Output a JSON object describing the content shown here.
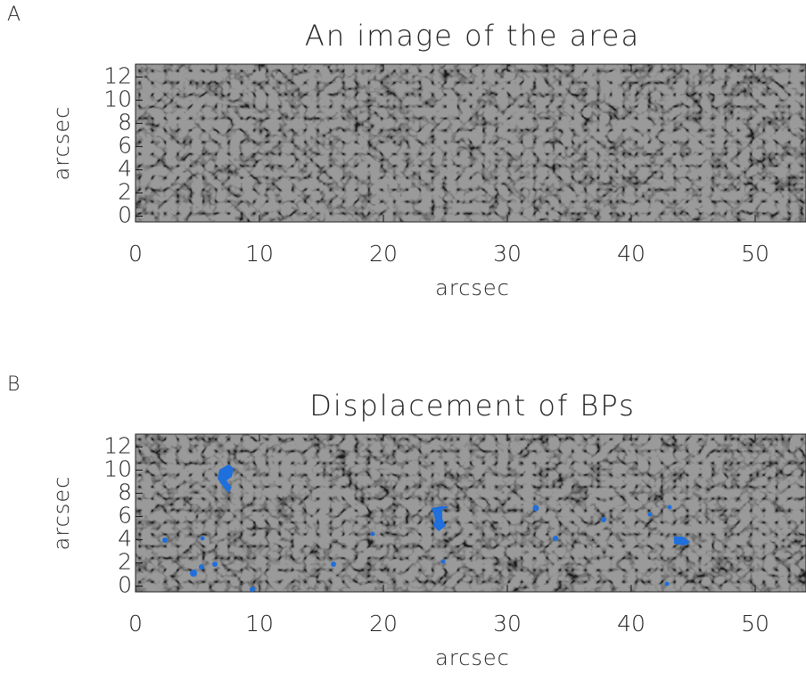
{
  "chart_data": [
    {
      "type": "image",
      "panel_label": "A",
      "title": "An image of the area",
      "xlabel": "arcsec",
      "ylabel": "arcsec",
      "xlim": [
        0,
        54.1
      ],
      "ylim": [
        -0.5,
        13.1
      ],
      "xticks": [
        0,
        10,
        20,
        30,
        40,
        50
      ],
      "yticks": [
        0,
        2,
        4,
        6,
        8,
        10,
        12
      ]
    },
    {
      "type": "image",
      "panel_label": "B",
      "title": "Displacement of BPs",
      "xlabel": "arcsec",
      "ylabel": "arcsec",
      "xlim": [
        0,
        54.1
      ],
      "ylim": [
        -0.5,
        13.1
      ],
      "xticks": [
        0,
        10,
        20,
        30,
        40,
        50
      ],
      "yticks": [
        0,
        2,
        4,
        6,
        8,
        10,
        12
      ],
      "marker_color": "#1f6fdc"
    }
  ]
}
